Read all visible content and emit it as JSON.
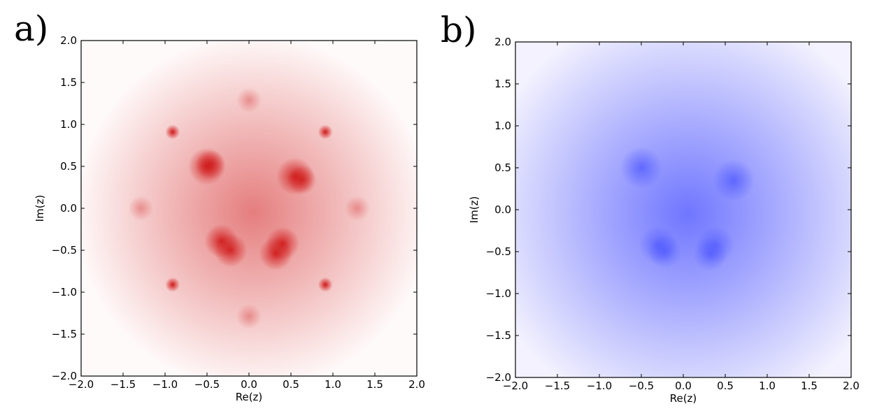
{
  "chart_data": [
    {
      "type": "heatmap",
      "panel_label": "a)",
      "xlabel": "Re(z)",
      "ylabel": "Im(z)",
      "xlim": [
        -2.0,
        2.0
      ],
      "ylim": [
        -2.0,
        2.0
      ],
      "xticks": [
        "−2.0",
        "−1.5",
        "−1.0",
        "−0.5",
        "0.0",
        "0.5",
        "1.0",
        "1.5",
        "2.0"
      ],
      "yticks": [
        "−2.0",
        "−1.5",
        "−1.0",
        "−0.5",
        "0.0",
        "0.5",
        "1.0",
        "1.5",
        "2.0"
      ],
      "colormap": "white-to-red",
      "color": "#d01818",
      "background": "#fffafa",
      "grid": false,
      "hotspots": [
        {
          "x": -0.5,
          "y": 0.5,
          "intensity": 0.9,
          "spread": 0.09
        },
        {
          "x": -0.46,
          "y": 0.52,
          "intensity": 0.8,
          "spread": 0.07
        },
        {
          "x": 0.55,
          "y": 0.38,
          "intensity": 0.9,
          "spread": 0.09
        },
        {
          "x": 0.63,
          "y": 0.34,
          "intensity": 0.8,
          "spread": 0.07
        },
        {
          "x": -0.33,
          "y": -0.39,
          "intensity": 0.9,
          "spread": 0.08
        },
        {
          "x": -0.22,
          "y": -0.5,
          "intensity": 0.9,
          "spread": 0.08
        },
        {
          "x": 0.4,
          "y": -0.42,
          "intensity": 0.9,
          "spread": 0.08
        },
        {
          "x": 0.32,
          "y": -0.54,
          "intensity": 0.9,
          "spread": 0.08
        },
        {
          "x": -0.91,
          "y": 0.91,
          "intensity": 1.0,
          "spread": 0.035
        },
        {
          "x": 0.91,
          "y": 0.91,
          "intensity": 1.0,
          "spread": 0.035
        },
        {
          "x": -0.91,
          "y": -0.91,
          "intensity": 1.0,
          "spread": 0.035
        },
        {
          "x": 0.91,
          "y": -0.91,
          "intensity": 1.0,
          "spread": 0.035
        },
        {
          "x": 0.0,
          "y": 1.29,
          "intensity": 0.35,
          "spread": 0.06
        },
        {
          "x": 0.0,
          "y": -1.29,
          "intensity": 0.35,
          "spread": 0.06
        },
        {
          "x": -1.29,
          "y": 0.0,
          "intensity": 0.35,
          "spread": 0.06
        },
        {
          "x": 1.29,
          "y": 0.0,
          "intensity": 0.35,
          "spread": 0.06
        }
      ],
      "halo": {
        "x": 0.05,
        "y": -0.05,
        "intensity": 0.55,
        "spread": 0.85
      }
    },
    {
      "type": "heatmap",
      "panel_label": "b)",
      "xlabel": "Re(z)",
      "ylabel": "Im(z)",
      "xlim": [
        -2.0,
        2.0
      ],
      "ylim": [
        -2.0,
        2.0
      ],
      "xticks": [
        "−2.0",
        "−1.5",
        "−1.0",
        "−0.5",
        "0.0",
        "0.5",
        "1.0",
        "1.5",
        "2.0"
      ],
      "yticks": [
        "−2.0",
        "−1.5",
        "−1.0",
        "−0.5",
        "0.0",
        "0.5",
        "1.0",
        "1.5",
        "2.0"
      ],
      "colormap": "white-to-blue",
      "color": "#3c46ff",
      "background": "#f3f2fe",
      "grid": false,
      "hotspots": [
        {
          "x": -0.5,
          "y": 0.5,
          "intensity": 0.6,
          "spread": 0.1
        },
        {
          "x": 0.6,
          "y": 0.35,
          "intensity": 0.6,
          "spread": 0.1
        },
        {
          "x": -0.3,
          "y": -0.42,
          "intensity": 0.5,
          "spread": 0.09
        },
        {
          "x": -0.22,
          "y": -0.5,
          "intensity": 0.5,
          "spread": 0.08
        },
        {
          "x": 0.38,
          "y": -0.42,
          "intensity": 0.5,
          "spread": 0.09
        },
        {
          "x": 0.32,
          "y": -0.53,
          "intensity": 0.5,
          "spread": 0.08
        }
      ],
      "halo": {
        "x": 0.05,
        "y": -0.05,
        "intensity": 0.72,
        "spread": 1.0
      }
    }
  ]
}
